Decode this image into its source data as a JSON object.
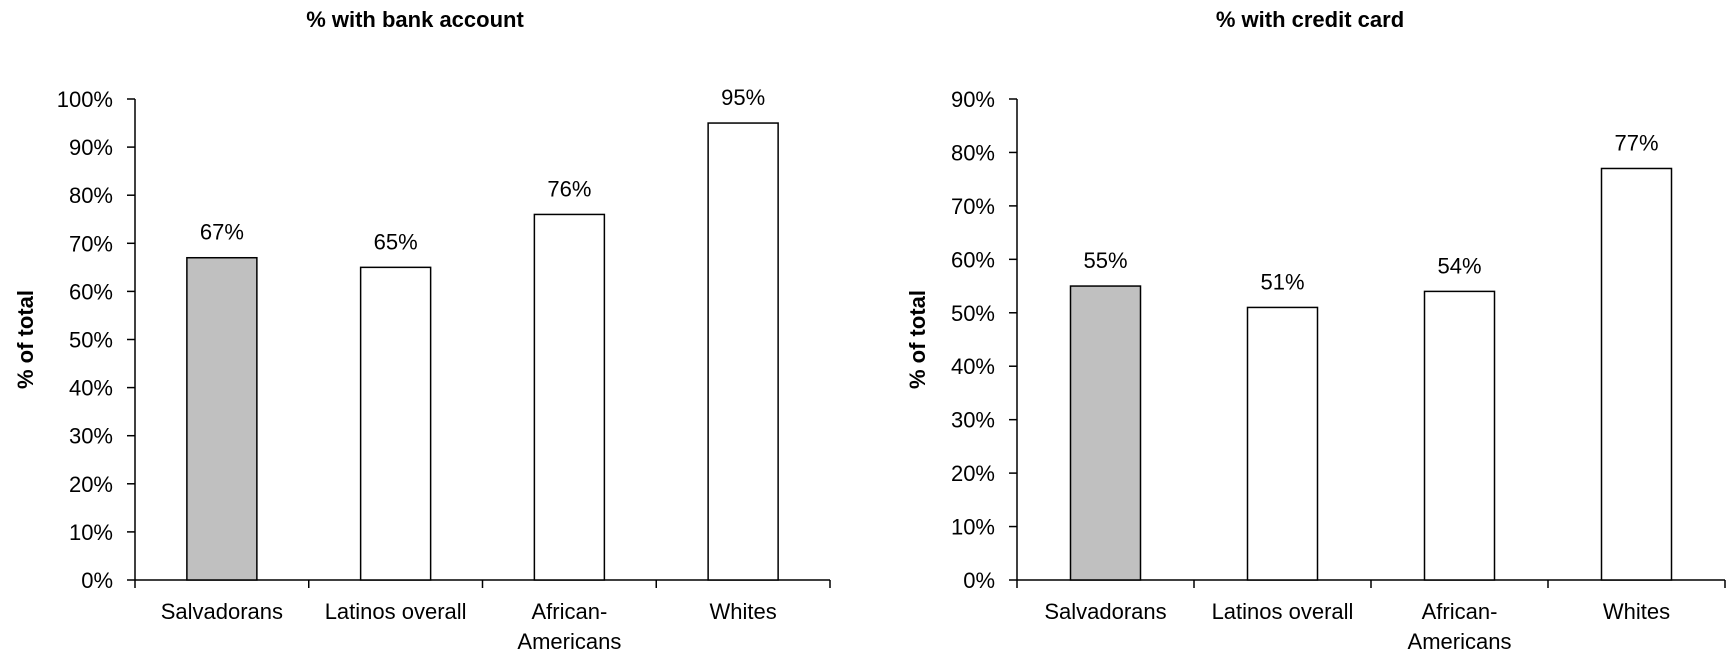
{
  "chart_data": [
    {
      "type": "bar",
      "title": "% with bank account",
      "ylabel": "% of total",
      "xlabel": "",
      "categories": [
        [
          "Salvadorans"
        ],
        [
          "Latinos overall"
        ],
        [
          "African-",
          "Americans"
        ],
        [
          "Whites"
        ]
      ],
      "values": [
        67,
        65,
        76,
        95
      ],
      "data_labels": [
        "67%",
        "65%",
        "76%",
        "95%"
      ],
      "bar_colors": [
        "#c0c0c0",
        "#ffffff",
        "#ffffff",
        "#ffffff"
      ],
      "ylim": [
        0,
        100
      ],
      "ytick_step": 10,
      "ytick_labels": [
        "0%",
        "10%",
        "20%",
        "30%",
        "40%",
        "50%",
        "60%",
        "70%",
        "80%",
        "90%",
        "100%"
      ],
      "grid": false,
      "legend": "none"
    },
    {
      "type": "bar",
      "title": "% with credit card",
      "ylabel": "% of total",
      "xlabel": "",
      "categories": [
        [
          "Salvadorans"
        ],
        [
          "Latinos overall"
        ],
        [
          "African-",
          "Americans"
        ],
        [
          "Whites"
        ]
      ],
      "values": [
        55,
        51,
        54,
        77
      ],
      "data_labels": [
        "55%",
        "51%",
        "54%",
        "77%"
      ],
      "bar_colors": [
        "#c0c0c0",
        "#ffffff",
        "#ffffff",
        "#ffffff"
      ],
      "ylim": [
        0,
        90
      ],
      "ytick_step": 10,
      "ytick_labels": [
        "0%",
        "10%",
        "20%",
        "30%",
        "40%",
        "50%",
        "60%",
        "70%",
        "80%",
        "90%"
      ],
      "grid": false,
      "legend": "none"
    }
  ]
}
